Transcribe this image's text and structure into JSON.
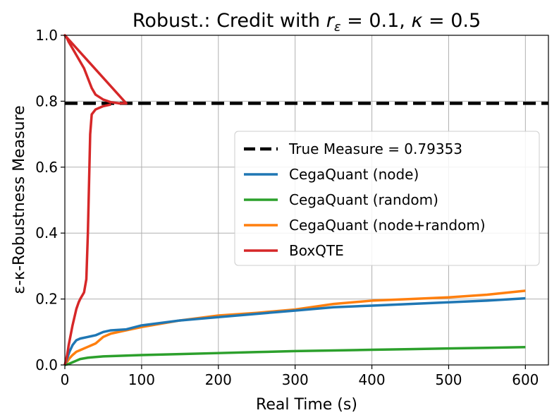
{
  "chart_data": {
    "type": "line",
    "title": "Robust.: Credit with r_ε = 0.1, κ = 0.5",
    "title_parts": {
      "prefix": "Robust.: Credit with ",
      "r": "r",
      "r_sub": "ε",
      "r_value": " = 0.1, ",
      "kappa": "κ",
      "kappa_value": " = 0.5"
    },
    "xlabel": "Real Time (s)",
    "ylabel": "ε-κ-Robustness Measure",
    "xlim": [
      0,
      630
    ],
    "ylim": [
      0,
      1.0
    ],
    "xticks": [
      0,
      100,
      200,
      300,
      400,
      500,
      600
    ],
    "yticks": [
      0.0,
      0.2,
      0.4,
      0.6,
      0.8,
      1.0
    ],
    "xtick_labels": [
      "0",
      "100",
      "200",
      "300",
      "400",
      "500",
      "600"
    ],
    "ytick_labels": [
      "0.0",
      "0.2",
      "0.4",
      "0.6",
      "0.8",
      "1.0"
    ],
    "grid": true,
    "legend_position": "center-right",
    "reference_line": {
      "name": "True Measure = 0.79353",
      "value": 0.79353,
      "color": "#000000",
      "style": "dashed"
    },
    "series": [
      {
        "name": "CegaQuant (node)",
        "color": "#1f77b4",
        "x": [
          0,
          3,
          6,
          10,
          15,
          20,
          30,
          40,
          50,
          60,
          80,
          100,
          150,
          200,
          250,
          300,
          350,
          400,
          450,
          500,
          550,
          600
        ],
        "y": [
          0,
          0.02,
          0.04,
          0.06,
          0.075,
          0.08,
          0.085,
          0.09,
          0.1,
          0.105,
          0.108,
          0.12,
          0.135,
          0.145,
          0.155,
          0.165,
          0.175,
          0.18,
          0.185,
          0.19,
          0.195,
          0.202
        ]
      },
      {
        "name": "CegaQuant (random)",
        "color": "#2ca02c",
        "x": [
          0,
          5,
          10,
          15,
          20,
          30,
          50,
          100,
          150,
          200,
          250,
          300,
          350,
          400,
          450,
          500,
          550,
          600
        ],
        "y": [
          0,
          0.003,
          0.008,
          0.013,
          0.018,
          0.022,
          0.026,
          0.03,
          0.033,
          0.036,
          0.039,
          0.042,
          0.044,
          0.046,
          0.048,
          0.05,
          0.052,
          0.054
        ]
      },
      {
        "name": "CegaQuant (node+random)",
        "color": "#ff7f0e",
        "x": [
          0,
          3,
          6,
          10,
          15,
          20,
          30,
          40,
          50,
          60,
          80,
          100,
          150,
          200,
          250,
          300,
          350,
          400,
          450,
          500,
          550,
          600
        ],
        "y": [
          0,
          0.01,
          0.02,
          0.03,
          0.04,
          0.045,
          0.055,
          0.065,
          0.085,
          0.095,
          0.105,
          0.115,
          0.135,
          0.15,
          0.158,
          0.168,
          0.185,
          0.195,
          0.2,
          0.205,
          0.213,
          0.225
        ]
      },
      {
        "name": "BoxQTE",
        "color": "#d62728",
        "x": [
          0,
          3,
          5,
          10,
          15,
          18,
          20,
          25,
          28,
          30,
          32,
          33,
          35,
          40,
          50,
          60,
          70,
          80,
          0,
          3,
          5,
          10,
          15,
          20,
          25,
          30,
          35,
          40,
          50,
          60,
          70,
          80
        ],
        "y": [
          0,
          0.03,
          0.06,
          0.12,
          0.17,
          0.19,
          0.2,
          0.22,
          0.26,
          0.4,
          0.6,
          0.7,
          0.76,
          0.775,
          0.785,
          0.79,
          0.793,
          0.7935,
          1.0,
          0.99,
          0.98,
          0.96,
          0.94,
          0.92,
          0.9,
          0.87,
          0.84,
          0.82,
          0.805,
          0.797,
          0.794,
          0.7935
        ],
        "note_branches": "lower branch rises from 0, upper branch falls from 1.0; both converge to the true measure"
      }
    ]
  }
}
